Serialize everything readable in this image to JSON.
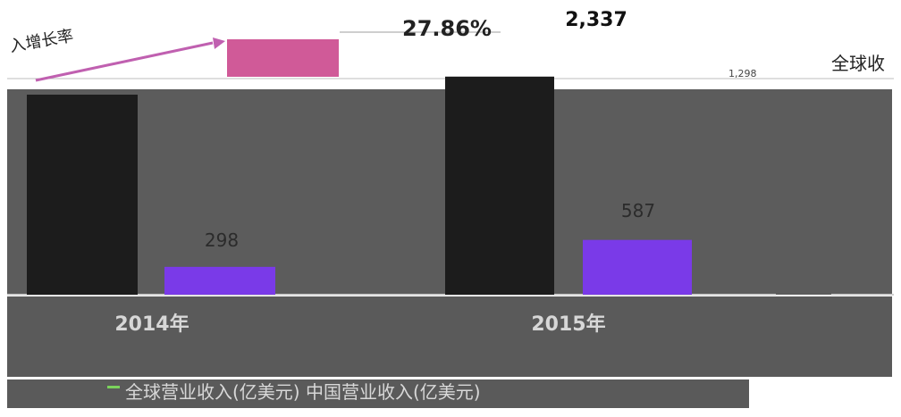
{
  "chart_data": {
    "type": "bar",
    "categories": [
      "2014年",
      "2015年"
    ],
    "series": [
      {
        "values": [
          null,
          2337
        ],
        "color": "#1c1c1c"
      },
      {
        "values": [
          298,
          587
        ],
        "color": "#7a3ae8"
      }
    ],
    "data_labels": [
      "298",
      "2,337",
      "587"
    ],
    "annotations": {
      "growth_left": "入增长率",
      "growth_right": "27.86%",
      "small_tag": "1,298",
      "right_title": "全球收"
    },
    "legend": {
      "text": "全球营业收入(亿美元) 中国营业收入(亿美元)",
      "placement": "bottom"
    },
    "ylim": [
      0,
      2600
    ]
  },
  "colors": {
    "plot_bg": "#5c5c5c",
    "lower_bg": "#5a5a5a",
    "pink": "#d05a98",
    "arrow": "#c060b0",
    "legend_accent": "#7bd35c"
  }
}
